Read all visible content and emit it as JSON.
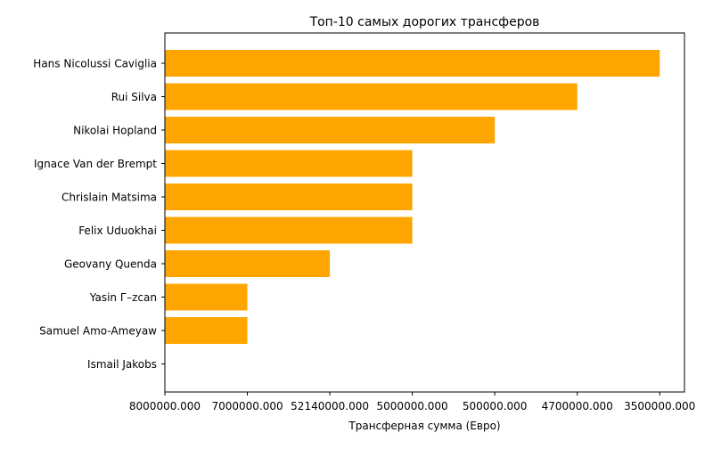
{
  "chart_data": {
    "type": "bar",
    "orientation": "horizontal",
    "title": "Топ-10 самых дорогих трансферов",
    "xlabel": "Трансферная сумма (Евро)",
    "ylabel": "",
    "categories": [
      "Hans Nicolussi Caviglia",
      "Rui Silva",
      "Nikolai Hopland",
      "Ignace Van der Brempt",
      "Chrislain Matsima",
      "Felix Uduokhai",
      "Geovany Quenda",
      "Yasin Г–zcan",
      "Samuel Amo-Ameyaw",
      "Ismail Jakobs"
    ],
    "values": [
      6,
      5,
      4,
      3,
      3,
      3,
      2,
      1,
      1,
      0
    ],
    "xticks": [
      "8000000.000",
      "7000000.000",
      "52140000.000",
      "5000000.000",
      "500000.000",
      "4700000.000",
      "3500000.000"
    ],
    "xlim": [
      0,
      6.3
    ],
    "bar_color": "#ffa500",
    "grid": false,
    "legend": "none"
  }
}
